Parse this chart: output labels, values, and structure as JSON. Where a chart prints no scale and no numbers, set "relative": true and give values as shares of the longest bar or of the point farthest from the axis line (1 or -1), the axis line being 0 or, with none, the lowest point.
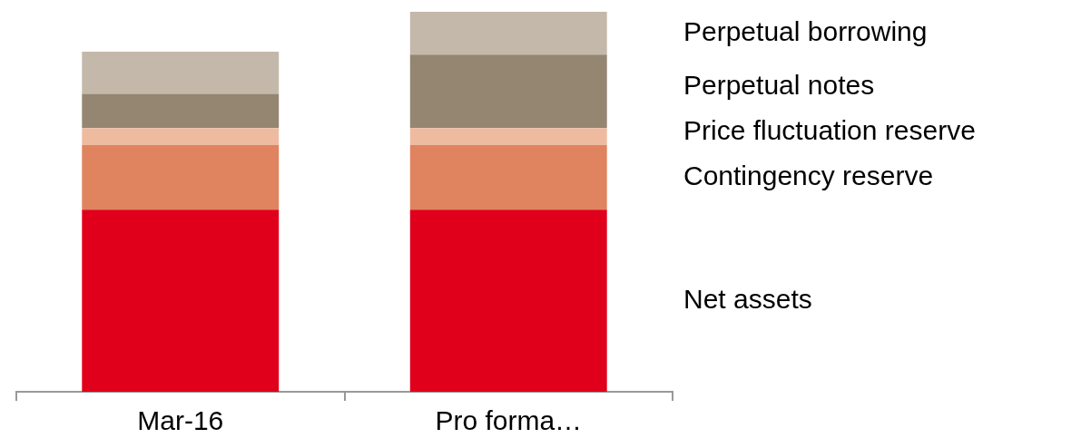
{
  "chart_data": {
    "type": "bar",
    "stacked": true,
    "relative": true,
    "legend": "right",
    "categories": [
      "Mar-16",
      "Pro forma…"
    ],
    "series": [
      {
        "name": "Net assets",
        "color": "#e0001b",
        "values": [
          0.479,
          0.479
        ]
      },
      {
        "name": "Contingency reserve",
        "color": "#e0835f",
        "values": [
          0.17,
          0.17
        ]
      },
      {
        "name": "Price fluctuation reserve",
        "color": "#eebba0",
        "values": [
          0.045,
          0.045
        ]
      },
      {
        "name": "Perpetual notes",
        "color": "#948671",
        "values": [
          0.09,
          0.193
        ]
      },
      {
        "name": "Perpetual borrowing",
        "color": "#c4b8aa",
        "values": [
          0.111,
          0.113
        ]
      }
    ]
  }
}
